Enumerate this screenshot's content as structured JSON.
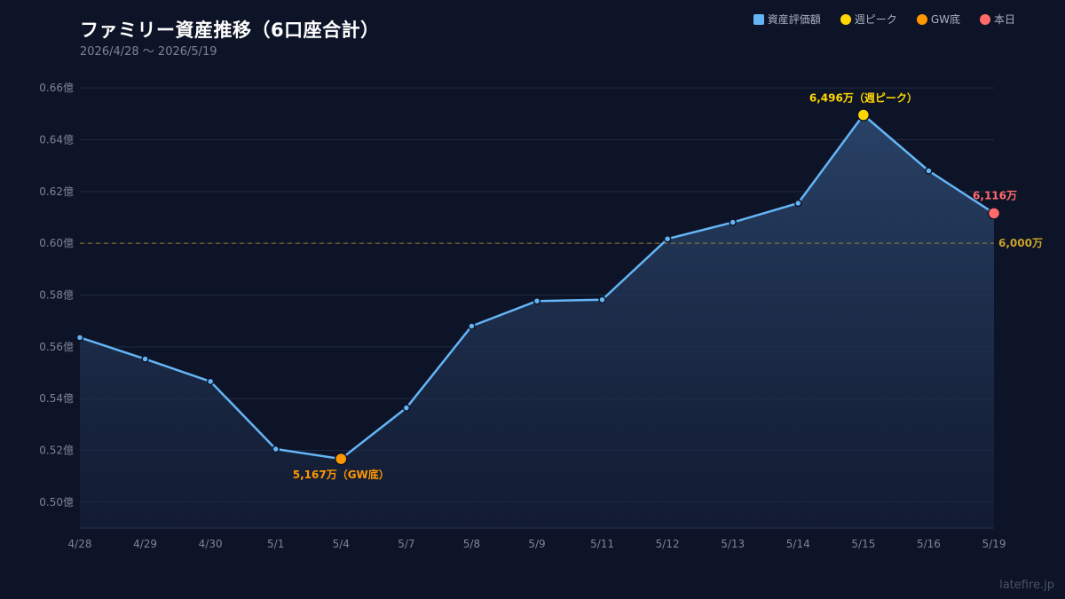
{
  "title": "ファミリー資産推移（6口座合計）",
  "subtitle": "2026/4/28 〜 2026/5/19",
  "watermark": "latefire.jp",
  "legend": [
    {
      "label": "資産評価額",
      "color": "#64b5f6",
      "shape": "square"
    },
    {
      "label": "週ピーク",
      "color": "#ffd600",
      "shape": "circle"
    },
    {
      "label": "GW底",
      "color": "#ff9800",
      "shape": "circle"
    },
    {
      "label": "本日",
      "color": "#ff6b6b",
      "shape": "circle"
    }
  ],
  "chart_data": {
    "type": "area",
    "categories": [
      "4/28",
      "4/29",
      "4/30",
      "5/1",
      "5/4",
      "5/7",
      "5/8",
      "5/9",
      "5/11",
      "5/12",
      "5/13",
      "5/14",
      "5/15",
      "5/16",
      "5/19"
    ],
    "series": [
      {
        "name": "資産評価額",
        "values": [
          0.5636,
          0.5553,
          0.5466,
          0.5205,
          0.5167,
          0.5364,
          0.568,
          0.5777,
          0.5782,
          0.6017,
          0.6081,
          0.6155,
          0.6496,
          0.628,
          0.6116
        ],
        "color": "#64b5f6"
      }
    ],
    "ylim": [
      0.49,
      0.67
    ],
    "yticks": [
      0.5,
      0.52,
      0.54,
      0.56,
      0.58,
      0.6,
      0.62,
      0.64,
      0.66
    ],
    "ytick_labels": [
      "0.50億",
      "0.52億",
      "0.54億",
      "0.56億",
      "0.58億",
      "0.60億",
      "0.62億",
      "0.64億",
      "0.66億"
    ],
    "grid": true,
    "reference_line": {
      "value": 0.6,
      "label": "6,000万",
      "color": "#c9a227"
    },
    "annotations": [
      {
        "index": 12,
        "label": "6,496万（週ピーク）",
        "color": "#ffd600"
      },
      {
        "index": 4,
        "label": "5,167万（GW底）",
        "color": "#ff9800"
      },
      {
        "index": 14,
        "label": "6,116万",
        "color": "#ff6b6b"
      }
    ],
    "legend_position": "top-right"
  }
}
